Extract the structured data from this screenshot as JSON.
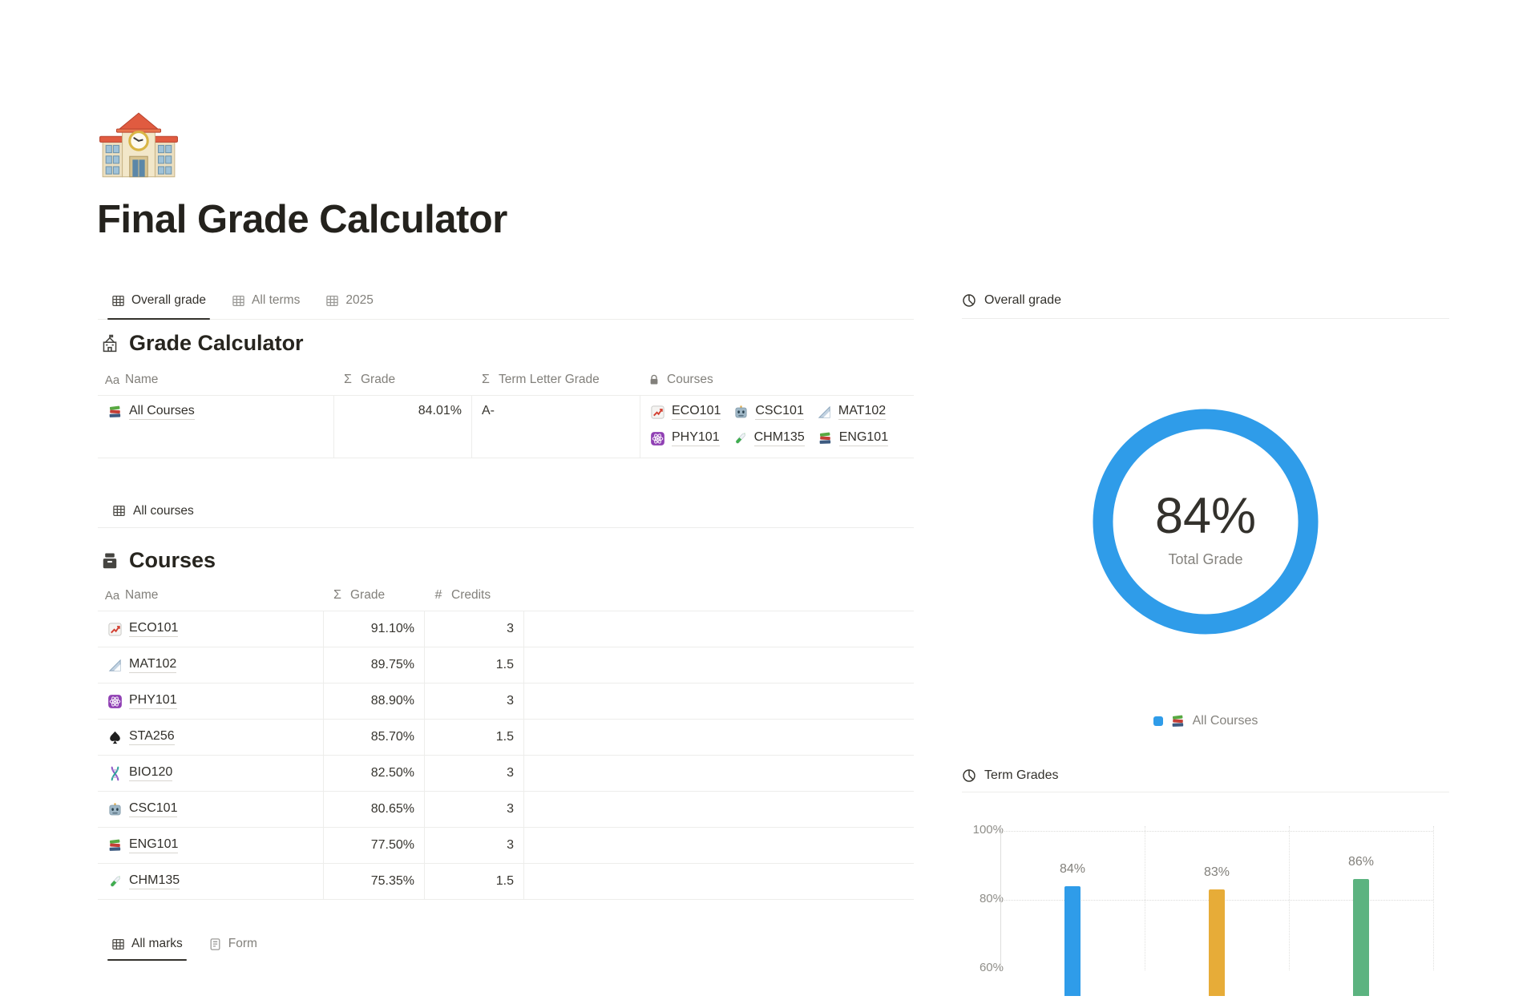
{
  "page": {
    "title": "Final Grade Calculator",
    "icon": "school-emoji-icon"
  },
  "tabs": [
    {
      "label": "Overall grade",
      "icon": "table-icon",
      "active": true
    },
    {
      "label": "All terms",
      "icon": "table-icon",
      "active": false
    },
    {
      "label": "2025",
      "icon": "table-icon",
      "active": false
    }
  ],
  "grade_calculator": {
    "title": "Grade Calculator",
    "icon": "school-building-icon",
    "columns": [
      {
        "label": "Name",
        "icon": "aa-icon"
      },
      {
        "label": "Grade",
        "icon": "sigma-icon"
      },
      {
        "label": "Term Letter Grade",
        "icon": "sigma-icon"
      },
      {
        "label": "Courses",
        "icon": "lock-icon"
      }
    ],
    "rows": [
      {
        "name": "All Courses",
        "name_icon": "books-icon",
        "grade": "84.01%",
        "term_letter_grade": "A-",
        "courses": [
          {
            "label": "ECO101",
            "icon": "chart-up-icon"
          },
          {
            "label": "CSC101",
            "icon": "robot-icon"
          },
          {
            "label": "MAT102",
            "icon": "ruler-icon"
          },
          {
            "label": "PHY101",
            "icon": "atom-icon"
          },
          {
            "label": "CHM135",
            "icon": "test-tube-icon"
          },
          {
            "label": "ENG101",
            "icon": "books-icon"
          }
        ]
      }
    ]
  },
  "all_courses_tab": {
    "label": "All courses",
    "icon": "table-icon"
  },
  "courses_table": {
    "title": "Courses",
    "icon": "archive-icon",
    "columns": [
      {
        "label": "Name",
        "icon": "aa-icon"
      },
      {
        "label": "Grade",
        "icon": "sigma-icon"
      },
      {
        "label": "Credits",
        "icon": "hash-icon"
      }
    ],
    "rows": [
      {
        "name": "ECO101",
        "icon": "chart-up-icon",
        "grade": "91.10%",
        "credits": "3"
      },
      {
        "name": "MAT102",
        "icon": "ruler-icon",
        "grade": "89.75%",
        "credits": "1.5"
      },
      {
        "name": "PHY101",
        "icon": "atom-icon",
        "grade": "88.90%",
        "credits": "3"
      },
      {
        "name": "STA256",
        "icon": "spade-icon",
        "grade": "85.70%",
        "credits": "1.5"
      },
      {
        "name": "BIO120",
        "icon": "dna-icon",
        "grade": "82.50%",
        "credits": "3"
      },
      {
        "name": "CSC101",
        "icon": "robot-icon",
        "grade": "80.65%",
        "credits": "3"
      },
      {
        "name": "ENG101",
        "icon": "books-icon",
        "grade": "77.50%",
        "credits": "3"
      },
      {
        "name": "CHM135",
        "icon": "test-tube-icon",
        "grade": "75.35%",
        "credits": "1.5"
      }
    ]
  },
  "bottom_tabs": [
    {
      "label": "All marks",
      "icon": "table-icon",
      "active": true
    },
    {
      "label": "Form",
      "icon": "document-icon",
      "active": false
    }
  ],
  "right_panel": {
    "overall_grade": {
      "header": "Overall grade",
      "icon": "pie-chart-icon",
      "donut": {
        "value_label": "84%",
        "sublabel": "Total Grade"
      },
      "legend": {
        "label": "All Courses",
        "icon": "books-icon",
        "swatch_color": "#2f9ce9"
      }
    },
    "term_grades": {
      "header": "Term Grades",
      "icon": "pie-chart-icon"
    }
  },
  "chart_data": [
    {
      "type": "donut",
      "title": "Overall grade",
      "series": [
        {
          "name": "All Courses",
          "value": 84
        }
      ],
      "center_label": "84%",
      "center_sublabel": "Total Grade",
      "color": "#2f9ce9",
      "legend_position": "bottom"
    },
    {
      "type": "bar",
      "title": "Term Grades",
      "values": [
        84,
        83,
        86
      ],
      "bar_labels": [
        "84%",
        "83%",
        "86%"
      ],
      "bar_colors": [
        "#2f9ce9",
        "#e7ac38",
        "#5cb380"
      ],
      "yticks": [
        {
          "label": "100%",
          "value": 100
        },
        {
          "label": "80%",
          "value": 80
        },
        {
          "label": "60%",
          "value": 60
        }
      ],
      "ylim_visible": [
        60,
        100
      ],
      "grid": "dotted",
      "note": "category axis labels are below the visible fold"
    }
  ]
}
